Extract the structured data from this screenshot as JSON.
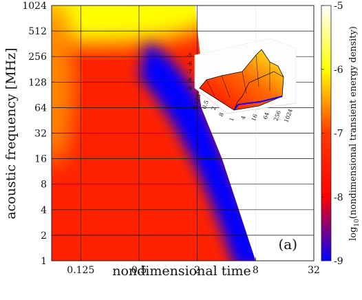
{
  "chart_data": {
    "type": "heatmap",
    "title": "",
    "panel_label": "(a)",
    "xlabel": "nondimensional time",
    "ylabel": "acoustic frequency [MHz]",
    "x_scale": "log2",
    "y_scale": "log2",
    "xlim": [
      0.0625,
      32
    ],
    "ylim": [
      1,
      1024
    ],
    "x_ticks": [
      0.125,
      0.5,
      2,
      8,
      32
    ],
    "x_tick_labels": [
      "0.125",
      "0.5",
      "2",
      "8",
      "32"
    ],
    "y_ticks": [
      1,
      2,
      4,
      8,
      16,
      32,
      64,
      128,
      256,
      512,
      1024
    ],
    "y_tick_labels": [
      "1",
      "2",
      "4",
      "8",
      "16",
      "32",
      "64",
      "128",
      "256",
      "512",
      "1024"
    ],
    "grid": true,
    "colorbar": {
      "label": "log10(nondimensional transient energy density)",
      "range": [
        -9,
        -5
      ],
      "ticks": [
        -9,
        -8,
        -7,
        -6,
        -5
      ],
      "tick_labels": [
        "-9",
        "-8",
        "-7",
        "-6",
        "-5"
      ],
      "colors": [
        "#0000ff",
        "#ff0000",
        "#ffff00",
        "#ffffff"
      ]
    },
    "boundary": [
      {
        "time": 8,
        "frequency": 1
      },
      {
        "time": 3.6,
        "frequency": 16
      },
      {
        "time": 2.2,
        "frequency": 64
      },
      {
        "time": 2.0,
        "frequency": 128
      },
      {
        "time": 2.15,
        "frequency": 256
      },
      {
        "time": 1.9,
        "frequency": 1024
      }
    ],
    "fields": [
      {
        "name": "low-energy-ridge",
        "time_start": 0.7,
        "freq_start": 256,
        "time_end": 8,
        "freq_end": 1,
        "value": -9
      },
      {
        "name": "upper-left",
        "time": 0.0625,
        "frequency": 1024,
        "value": -6
      }
    ],
    "inset": {
      "type": "surface-3d",
      "z_ticks": [
        -9,
        -8,
        -7,
        -6,
        -5
      ],
      "z_tick_labels": [
        "-9",
        "-8",
        "-7",
        "-6",
        "-5"
      ],
      "time_ticks": [
        0.125,
        0.5,
        2,
        8
      ],
      "time_tick_labels": [
        "0.125",
        "0.5",
        "2",
        "8"
      ],
      "freq_ticks": [
        1,
        4,
        16,
        64,
        256,
        1024
      ],
      "freq_tick_labels": [
        "1",
        "4",
        "16",
        "64",
        "256",
        "1024"
      ]
    }
  }
}
